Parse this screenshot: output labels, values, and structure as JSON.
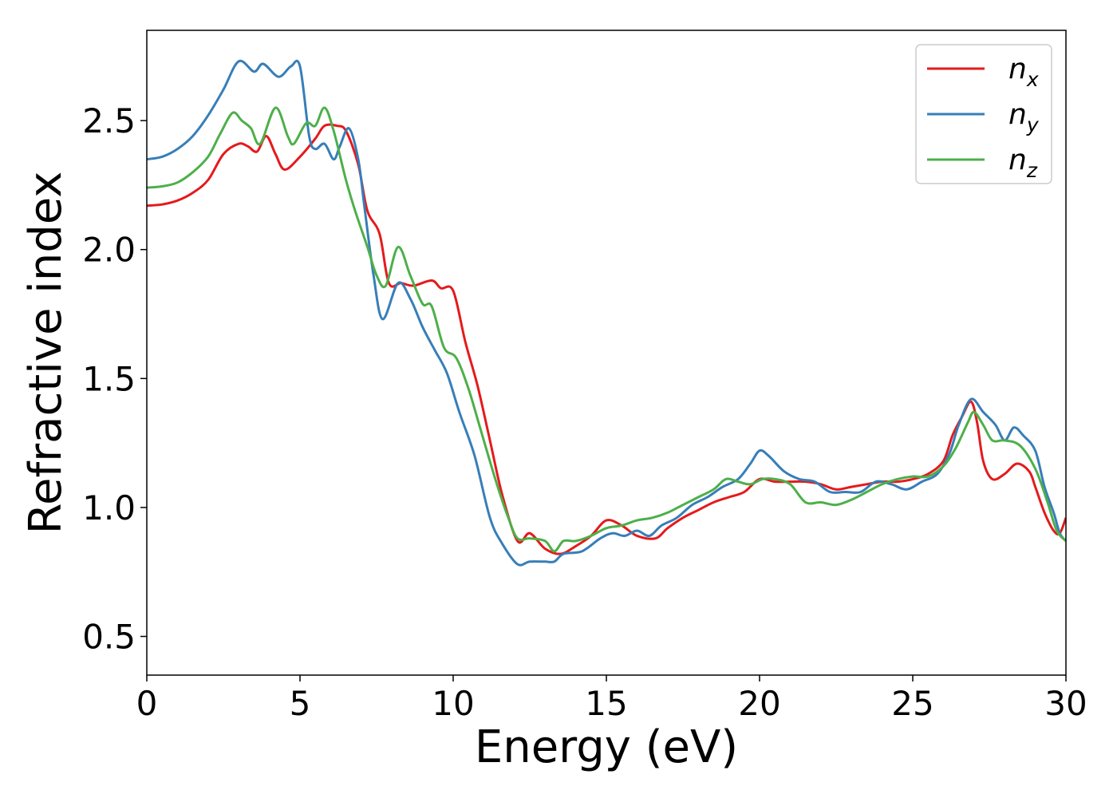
{
  "chart_data": {
    "type": "line",
    "xlabel": "Energy (eV)",
    "ylabel": "Refractive index",
    "xlim": [
      0,
      30
    ],
    "ylim": [
      0.35,
      2.85
    ],
    "xticks": [
      0,
      5,
      10,
      15,
      20,
      25,
      30
    ],
    "xtick_labels": [
      "0",
      "5",
      "10",
      "15",
      "20",
      "25",
      "30"
    ],
    "yticks": [
      0.5,
      1.0,
      1.5,
      2.0,
      2.5
    ],
    "ytick_labels": [
      "0.5",
      "1.0",
      "1.5",
      "2.0",
      "2.5"
    ],
    "grid": false,
    "legend_position": "top-right",
    "series": [
      {
        "name": "n",
        "subscript": "x",
        "color": "#e41a1c",
        "points": [
          [
            0,
            2.17
          ],
          [
            0.5,
            2.175
          ],
          [
            1,
            2.19
          ],
          [
            1.5,
            2.22
          ],
          [
            2,
            2.27
          ],
          [
            2.5,
            2.37
          ],
          [
            3,
            2.41
          ],
          [
            3.3,
            2.4
          ],
          [
            3.6,
            2.38
          ],
          [
            3.9,
            2.44
          ],
          [
            4.2,
            2.37
          ],
          [
            4.5,
            2.31
          ],
          [
            5,
            2.36
          ],
          [
            5.5,
            2.43
          ],
          [
            5.8,
            2.48
          ],
          [
            6.2,
            2.48
          ],
          [
            6.5,
            2.46
          ],
          [
            6.9,
            2.33
          ],
          [
            7.2,
            2.15
          ],
          [
            7.6,
            2.06
          ],
          [
            7.9,
            1.87
          ],
          [
            8.3,
            1.87
          ],
          [
            8.7,
            1.86
          ],
          [
            9.3,
            1.88
          ],
          [
            9.6,
            1.85
          ],
          [
            10,
            1.84
          ],
          [
            10.4,
            1.64
          ],
          [
            10.8,
            1.47
          ],
          [
            11.2,
            1.26
          ],
          [
            11.6,
            1.05
          ],
          [
            12.1,
            0.87
          ],
          [
            12.5,
            0.9
          ],
          [
            13,
            0.84
          ],
          [
            13.5,
            0.82
          ],
          [
            14,
            0.85
          ],
          [
            14.5,
            0.89
          ],
          [
            15,
            0.95
          ],
          [
            15.5,
            0.93
          ],
          [
            16,
            0.89
          ],
          [
            16.6,
            0.88
          ],
          [
            17,
            0.92
          ],
          [
            17.5,
            0.96
          ],
          [
            18,
            0.99
          ],
          [
            18.5,
            1.02
          ],
          [
            19,
            1.04
          ],
          [
            19.5,
            1.06
          ],
          [
            20,
            1.11
          ],
          [
            20.5,
            1.1
          ],
          [
            21,
            1.1
          ],
          [
            21.5,
            1.1
          ],
          [
            22,
            1.09
          ],
          [
            22.5,
            1.07
          ],
          [
            23,
            1.08
          ],
          [
            23.5,
            1.09
          ],
          [
            24,
            1.1
          ],
          [
            24.5,
            1.1
          ],
          [
            25,
            1.11
          ],
          [
            25.5,
            1.13
          ],
          [
            26,
            1.18
          ],
          [
            26.3,
            1.28
          ],
          [
            26.6,
            1.35
          ],
          [
            26.9,
            1.41
          ],
          [
            27.1,
            1.33
          ],
          [
            27.3,
            1.18
          ],
          [
            27.6,
            1.11
          ],
          [
            28,
            1.13
          ],
          [
            28.4,
            1.17
          ],
          [
            28.8,
            1.14
          ],
          [
            29,
            1.08
          ],
          [
            29.3,
            0.98
          ],
          [
            29.6,
            0.91
          ],
          [
            29.8,
            0.9
          ],
          [
            30,
            0.96
          ]
        ]
      },
      {
        "name": "n",
        "subscript": "y",
        "color": "#377eb8",
        "points": [
          [
            0,
            2.35
          ],
          [
            0.5,
            2.36
          ],
          [
            1,
            2.39
          ],
          [
            1.5,
            2.44
          ],
          [
            2,
            2.52
          ],
          [
            2.5,
            2.62
          ],
          [
            3,
            2.73
          ],
          [
            3.5,
            2.69
          ],
          [
            3.8,
            2.72
          ],
          [
            4.3,
            2.67
          ],
          [
            4.7,
            2.71
          ],
          [
            5,
            2.71
          ],
          [
            5.3,
            2.44
          ],
          [
            5.5,
            2.39
          ],
          [
            5.8,
            2.41
          ],
          [
            6.1,
            2.35
          ],
          [
            6.3,
            2.4
          ],
          [
            6.6,
            2.47
          ],
          [
            6.9,
            2.35
          ],
          [
            7.1,
            2.17
          ],
          [
            7.4,
            1.9
          ],
          [
            7.7,
            1.73
          ],
          [
            8.2,
            1.87
          ],
          [
            8.6,
            1.81
          ],
          [
            9,
            1.7
          ],
          [
            9.4,
            1.61
          ],
          [
            9.8,
            1.52
          ],
          [
            10.2,
            1.37
          ],
          [
            10.7,
            1.2
          ],
          [
            11.2,
            0.96
          ],
          [
            11.6,
            0.86
          ],
          [
            12.1,
            0.78
          ],
          [
            12.5,
            0.79
          ],
          [
            13,
            0.79
          ],
          [
            13.3,
            0.79
          ],
          [
            13.6,
            0.82
          ],
          [
            14.2,
            0.83
          ],
          [
            14.8,
            0.88
          ],
          [
            15.2,
            0.9
          ],
          [
            15.6,
            0.89
          ],
          [
            16,
            0.91
          ],
          [
            16.4,
            0.89
          ],
          [
            16.8,
            0.93
          ],
          [
            17.3,
            0.96
          ],
          [
            17.8,
            1.01
          ],
          [
            18.3,
            1.04
          ],
          [
            18.8,
            1.08
          ],
          [
            19.3,
            1.11
          ],
          [
            19.7,
            1.17
          ],
          [
            20,
            1.22
          ],
          [
            20.3,
            1.2
          ],
          [
            20.8,
            1.14
          ],
          [
            21.3,
            1.11
          ],
          [
            21.8,
            1.1
          ],
          [
            22.3,
            1.06
          ],
          [
            22.8,
            1.06
          ],
          [
            23.3,
            1.06
          ],
          [
            23.8,
            1.1
          ],
          [
            24.3,
            1.09
          ],
          [
            24.8,
            1.07
          ],
          [
            25.3,
            1.1
          ],
          [
            25.8,
            1.13
          ],
          [
            26.2,
            1.21
          ],
          [
            26.5,
            1.32
          ],
          [
            26.9,
            1.42
          ],
          [
            27.3,
            1.37
          ],
          [
            27.7,
            1.32
          ],
          [
            28,
            1.26
          ],
          [
            28.3,
            1.31
          ],
          [
            28.6,
            1.28
          ],
          [
            29,
            1.22
          ],
          [
            29.3,
            1.08
          ],
          [
            29.6,
            0.98
          ],
          [
            29.8,
            0.9
          ],
          [
            30,
            0.87
          ]
        ]
      },
      {
        "name": "n",
        "subscript": "z",
        "color": "#4daf4a",
        "points": [
          [
            0,
            2.24
          ],
          [
            0.5,
            2.245
          ],
          [
            1,
            2.26
          ],
          [
            1.5,
            2.3
          ],
          [
            2,
            2.36
          ],
          [
            2.4,
            2.45
          ],
          [
            2.8,
            2.53
          ],
          [
            3.1,
            2.5
          ],
          [
            3.4,
            2.47
          ],
          [
            3.7,
            2.41
          ],
          [
            4.2,
            2.55
          ],
          [
            4.6,
            2.44
          ],
          [
            4.8,
            2.41
          ],
          [
            5.2,
            2.49
          ],
          [
            5.5,
            2.48
          ],
          [
            5.8,
            2.55
          ],
          [
            6.1,
            2.46
          ],
          [
            6.5,
            2.27
          ],
          [
            6.8,
            2.15
          ],
          [
            7.2,
            2.01
          ],
          [
            7.5,
            1.9
          ],
          [
            7.8,
            1.86
          ],
          [
            8.2,
            2.01
          ],
          [
            8.6,
            1.9
          ],
          [
            9,
            1.79
          ],
          [
            9.3,
            1.78
          ],
          [
            9.7,
            1.62
          ],
          [
            10.1,
            1.58
          ],
          [
            10.5,
            1.46
          ],
          [
            10.9,
            1.3
          ],
          [
            11.4,
            1.1
          ],
          [
            11.8,
            0.96
          ],
          [
            12.1,
            0.88
          ],
          [
            12.5,
            0.88
          ],
          [
            13,
            0.87
          ],
          [
            13.3,
            0.83
          ],
          [
            13.6,
            0.87
          ],
          [
            14,
            0.87
          ],
          [
            14.5,
            0.89
          ],
          [
            15,
            0.92
          ],
          [
            15.5,
            0.93
          ],
          [
            16,
            0.95
          ],
          [
            16.5,
            0.96
          ],
          [
            17,
            0.98
          ],
          [
            17.5,
            1.01
          ],
          [
            18,
            1.04
          ],
          [
            18.5,
            1.07
          ],
          [
            18.9,
            1.11
          ],
          [
            19.3,
            1.1
          ],
          [
            19.7,
            1.09
          ],
          [
            20.1,
            1.11
          ],
          [
            20.5,
            1.11
          ],
          [
            21,
            1.09
          ],
          [
            21.5,
            1.02
          ],
          [
            22,
            1.02
          ],
          [
            22.5,
            1.01
          ],
          [
            23,
            1.03
          ],
          [
            23.5,
            1.06
          ],
          [
            24,
            1.09
          ],
          [
            24.5,
            1.11
          ],
          [
            25,
            1.12
          ],
          [
            25.5,
            1.12
          ],
          [
            26,
            1.16
          ],
          [
            26.4,
            1.23
          ],
          [
            26.8,
            1.33
          ],
          [
            27,
            1.37
          ],
          [
            27.3,
            1.32
          ],
          [
            27.6,
            1.26
          ],
          [
            28,
            1.26
          ],
          [
            28.5,
            1.24
          ],
          [
            29,
            1.15
          ],
          [
            29.4,
            1.02
          ],
          [
            29.7,
            0.91
          ],
          [
            30,
            0.87
          ]
        ]
      }
    ]
  }
}
